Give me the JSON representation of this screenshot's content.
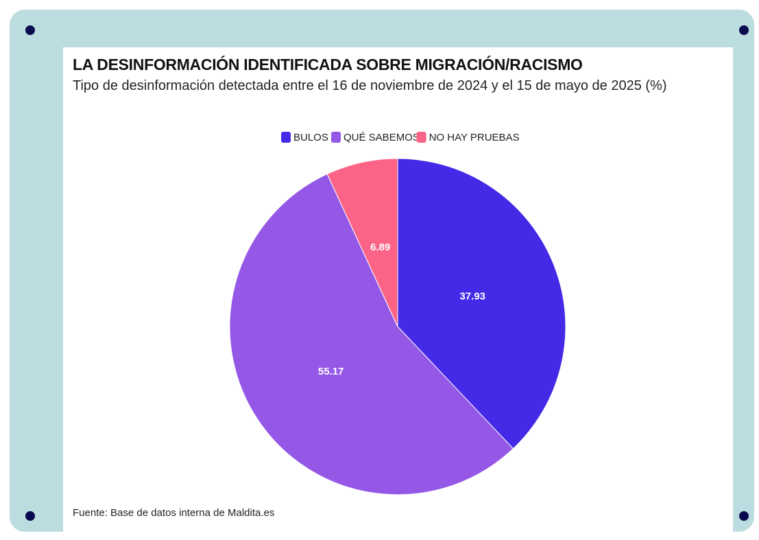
{
  "chart_data": {
    "type": "pie",
    "title": "LA DESINFORMACIÓN IDENTIFICADA SOBRE MIGRACIÓN/RACISMO",
    "subtitle": "Tipo de desinformación detectada entre el 16 de noviembre de 2024 y el 15 de mayo de 2025 (%)",
    "categories": [
      "BULOS",
      "QUÉ SABEMOS",
      "NO HAY PRUEBAS"
    ],
    "values": [
      37.93,
      55.17,
      6.89
    ],
    "colors": [
      "#4429e6",
      "#9457e6",
      "#fb6487"
    ],
    "legend": "top",
    "source": "Fuente: Base de datos interna de Maldita.es"
  }
}
